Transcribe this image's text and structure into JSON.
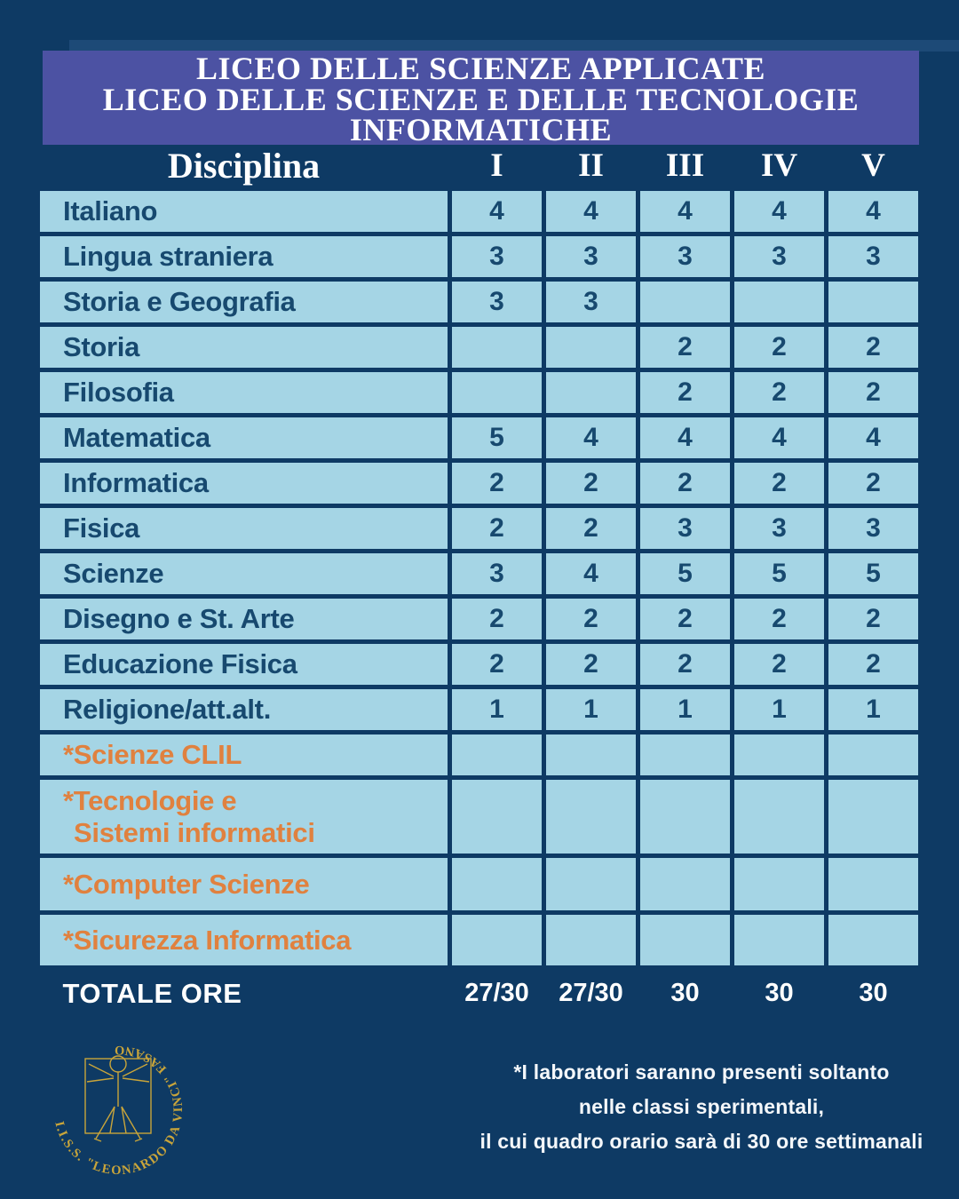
{
  "title": {
    "lines": [
      "LICEO DELLE SCIENZE APPLICATE",
      "LICEO DELLE SCIENZE  E DELLE TECNOLOGIE",
      "INFORMATICHE"
    ]
  },
  "table": {
    "header": {
      "discipline": "Disciplina",
      "years": [
        "I",
        "II",
        "III",
        "IV",
        "V"
      ]
    },
    "rows": [
      {
        "label_lines": [
          "Italiano"
        ],
        "values": [
          "4",
          "4",
          "4",
          "4",
          "4"
        ],
        "accent": false
      },
      {
        "label_lines": [
          "Lingua straniera"
        ],
        "values": [
          "3",
          "3",
          "3",
          "3",
          "3"
        ],
        "accent": false
      },
      {
        "label_lines": [
          "Storia e Geografia"
        ],
        "values": [
          "3",
          "3",
          "",
          "",
          ""
        ],
        "accent": false
      },
      {
        "label_lines": [
          "Storia"
        ],
        "values": [
          "",
          "",
          "2",
          "2",
          "2"
        ],
        "accent": false
      },
      {
        "label_lines": [
          "Filosofia"
        ],
        "values": [
          "",
          "",
          "2",
          "2",
          "2"
        ],
        "accent": false
      },
      {
        "label_lines": [
          "Matematica"
        ],
        "values": [
          "5",
          "4",
          "4",
          "4",
          "4"
        ],
        "accent": false
      },
      {
        "label_lines": [
          "Informatica"
        ],
        "values": [
          "2",
          "2",
          "2",
          "2",
          "2"
        ],
        "accent": false
      },
      {
        "label_lines": [
          "Fisica"
        ],
        "values": [
          "2",
          "2",
          "3",
          "3",
          "3"
        ],
        "accent": false
      },
      {
        "label_lines": [
          "Scienze"
        ],
        "values": [
          "3",
          "4",
          "5",
          "5",
          "5"
        ],
        "accent": false
      },
      {
        "label_lines": [
          "Disegno e St. Arte"
        ],
        "values": [
          "2",
          "2",
          "2",
          "2",
          "2"
        ],
        "accent": false
      },
      {
        "label_lines": [
          "Educazione Fisica"
        ],
        "values": [
          "2",
          "2",
          "2",
          "2",
          "2"
        ],
        "accent": false
      },
      {
        "label_lines": [
          "Religione/att.alt."
        ],
        "values": [
          "1",
          "1",
          "1",
          "1",
          "1"
        ],
        "accent": false
      },
      {
        "label_lines": [
          "*Scienze CLIL"
        ],
        "values": [
          "",
          "",
          "",
          "",
          ""
        ],
        "accent": true
      },
      {
        "label_lines": [
          "*Tecnologie e",
          "Sistemi informatici"
        ],
        "values": [
          "",
          "",
          "",
          "",
          ""
        ],
        "accent": true
      },
      {
        "label_lines": [
          "*Computer Scienze"
        ],
        "values": [
          "",
          "",
          "",
          "",
          ""
        ],
        "accent": true
      },
      {
        "label_lines": [
          "*Sicurezza Informatica"
        ],
        "values": [
          "",
          "",
          "",
          "",
          ""
        ],
        "accent": true
      }
    ],
    "totals": {
      "label": "TOTALE ORE",
      "values": [
        "27/30",
        "27/30",
        "30",
        "30",
        "30"
      ]
    }
  },
  "footnote": {
    "lines": [
      "*I laboratori saranno presenti soltanto",
      "nelle classi sperimentali,",
      "il cui quadro orario sarà di 30 ore settimanali"
    ]
  },
  "logo": {
    "seal_text": "I.I.S.S. \"LEONARDO DA VINCI\" FASANO"
  },
  "colors": {
    "bg": "#0e3a64",
    "band": "#4c52a3",
    "cell": "#a5d5e5",
    "ink": "#17496f",
    "accent": "#e0813f",
    "gold": "#c9a53a"
  }
}
